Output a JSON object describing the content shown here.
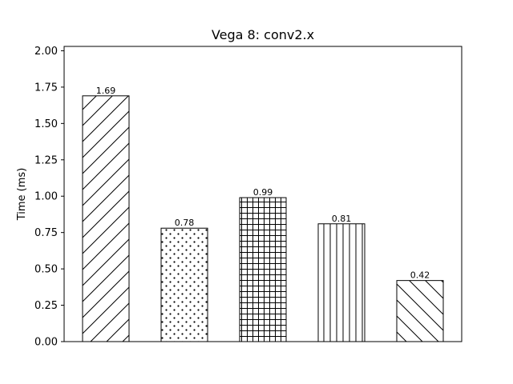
{
  "chart_data": {
    "type": "bar",
    "title": "Vega 8: conv2.x",
    "xlabel": "",
    "ylabel": "Time (ms)",
    "ylim": [
      0,
      2.03
    ],
    "yticks": [
      "0.00",
      "0.25",
      "0.50",
      "0.75",
      "1.00",
      "1.25",
      "1.50",
      "1.75",
      "2.00"
    ],
    "grid": false,
    "categories": [
      "",
      "",
      "",
      "",
      ""
    ],
    "values": [
      1.69,
      0.78,
      0.99,
      0.81,
      0.42
    ],
    "data_labels": [
      "1.69",
      "0.78",
      "0.99",
      "0.81",
      "0.42"
    ],
    "hatches": [
      "diagonal-forward",
      "dots",
      "grid",
      "vertical",
      "diagonal-back"
    ],
    "colors": {
      "fill": "#ffffff",
      "edge": "#000000"
    }
  }
}
